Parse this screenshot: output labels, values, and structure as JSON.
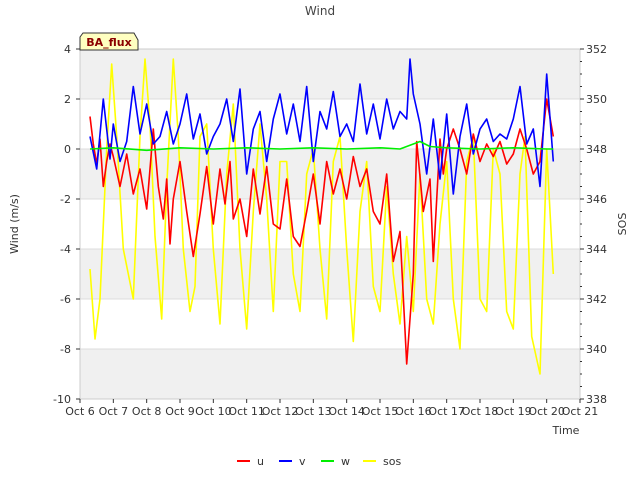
{
  "chart_data": {
    "type": "line",
    "title": "Wind",
    "station_label": "BA_flux",
    "xlabel": "Time",
    "ylabel_left": "Wind (m/s)",
    "ylabel_right": "SOS",
    "xlim": [
      6,
      21
    ],
    "x_ticks": [
      {
        "x": 6,
        "label": "Oct 6"
      },
      {
        "x": 7,
        "label": "Oct 7"
      },
      {
        "x": 8,
        "label": "Oct 8"
      },
      {
        "x": 9,
        "label": "Oct 9"
      },
      {
        "x": 10,
        "label": "Oct 10"
      },
      {
        "x": 11,
        "label": "Oct 11"
      },
      {
        "x": 12,
        "label": "Oct 12"
      },
      {
        "x": 13,
        "label": "Oct 13"
      },
      {
        "x": 14,
        "label": "Oct 14"
      },
      {
        "x": 15,
        "label": "Oct 15"
      },
      {
        "x": 16,
        "label": "Oct 16"
      },
      {
        "x": 17,
        "label": "Oct 17"
      },
      {
        "x": 18,
        "label": "Oct 18"
      },
      {
        "x": 19,
        "label": "Oct 19"
      },
      {
        "x": 20,
        "label": "Oct 20"
      },
      {
        "x": 21,
        "label": "Oct 21"
      }
    ],
    "ylim_left": [
      -10,
      4
    ],
    "y_ticks_left": [
      4,
      2,
      0,
      -2,
      -4,
      -6,
      -8,
      -10
    ],
    "ylim_right": [
      338,
      352
    ],
    "y_ticks_right": [
      352,
      350,
      348,
      346,
      344,
      342,
      340,
      338
    ],
    "grid": "horizontal bands",
    "legend_position": "bottom",
    "series": [
      {
        "name": "u",
        "axis": "left",
        "color": "#ff0000",
        "x": [
          6.3,
          6.4,
          6.5,
          6.6,
          6.7,
          6.8,
          6.9,
          7.0,
          7.2,
          7.4,
          7.6,
          7.8,
          8.0,
          8.2,
          8.35,
          8.5,
          8.6,
          8.7,
          8.8,
          9.0,
          9.2,
          9.4,
          9.6,
          9.8,
          10.0,
          10.2,
          10.35,
          10.5,
          10.6,
          10.8,
          11.0,
          11.2,
          11.4,
          11.6,
          11.8,
          12.0,
          12.2,
          12.4,
          12.6,
          12.8,
          13.0,
          13.2,
          13.4,
          13.6,
          13.8,
          14.0,
          14.2,
          14.4,
          14.6,
          14.8,
          15.0,
          15.2,
          15.4,
          15.6,
          15.8,
          16.0,
          16.1,
          16.3,
          16.5,
          16.6,
          16.8,
          16.9,
          17.0,
          17.2,
          17.4,
          17.6,
          17.8,
          18.0,
          18.2,
          18.4,
          18.6,
          18.8,
          19.0,
          19.2,
          19.4,
          19.6,
          19.8,
          20.0,
          20.2
        ],
        "y": [
          1.3,
          0.2,
          -0.6,
          0.4,
          -1.5,
          -0.5,
          0.2,
          -0.3,
          -1.5,
          -0.2,
          -1.8,
          -0.8,
          -2.4,
          0.8,
          -1.5,
          -2.8,
          -1.2,
          -3.8,
          -2.0,
          -0.5,
          -2.5,
          -4.3,
          -2.6,
          -0.7,
          -3.0,
          -0.8,
          -2.2,
          -0.5,
          -2.8,
          -2.0,
          -3.5,
          -0.8,
          -2.6,
          -0.7,
          -3.0,
          -3.2,
          -1.2,
          -3.5,
          -3.9,
          -2.5,
          -1.0,
          -3.0,
          -0.5,
          -1.8,
          -0.8,
          -2.0,
          -0.3,
          -1.5,
          -0.8,
          -2.5,
          -3.0,
          -1.0,
          -4.5,
          -3.3,
          -8.6,
          -5.0,
          0.3,
          -2.5,
          -1.2,
          -4.5,
          0.4,
          -1.0,
          0.0,
          0.8,
          0.0,
          -1.0,
          0.6,
          -0.5,
          0.2,
          -0.3,
          0.3,
          -0.6,
          -0.2,
          0.8,
          0.0,
          -1.0,
          -0.5,
          2.0,
          0.5
        ]
      },
      {
        "name": "v",
        "axis": "left",
        "color": "#0000ff",
        "x": [
          6.3,
          6.5,
          6.7,
          6.9,
          7.0,
          7.2,
          7.4,
          7.6,
          7.8,
          8.0,
          8.2,
          8.4,
          8.6,
          8.8,
          9.0,
          9.2,
          9.4,
          9.6,
          9.8,
          10.0,
          10.2,
          10.4,
          10.6,
          10.8,
          11.0,
          11.2,
          11.4,
          11.6,
          11.8,
          12.0,
          12.2,
          12.4,
          12.6,
          12.8,
          13.0,
          13.2,
          13.4,
          13.6,
          13.8,
          14.0,
          14.2,
          14.4,
          14.6,
          14.8,
          15.0,
          15.2,
          15.4,
          15.6,
          15.8,
          15.9,
          16.0,
          16.2,
          16.4,
          16.6,
          16.8,
          17.0,
          17.2,
          17.4,
          17.6,
          17.8,
          18.0,
          18.2,
          18.4,
          18.6,
          18.8,
          19.0,
          19.2,
          19.4,
          19.6,
          19.8,
          20.0,
          20.2
        ],
        "y": [
          0.5,
          -0.8,
          2.0,
          -0.4,
          1.0,
          -0.5,
          0.3,
          2.5,
          0.6,
          1.8,
          0.2,
          0.5,
          1.5,
          0.2,
          1.0,
          2.2,
          0.4,
          1.4,
          -0.2,
          0.5,
          1.0,
          2.0,
          0.3,
          2.4,
          -1.0,
          0.8,
          1.5,
          -0.5,
          1.2,
          2.2,
          0.6,
          1.8,
          0.3,
          2.5,
          -0.5,
          1.5,
          0.8,
          2.3,
          0.5,
          1.0,
          0.3,
          2.6,
          0.6,
          1.8,
          0.4,
          2.0,
          0.8,
          1.5,
          1.2,
          3.6,
          2.2,
          1.0,
          -1.0,
          1.2,
          -1.2,
          1.4,
          -1.8,
          0.5,
          1.8,
          -0.2,
          0.8,
          1.2,
          0.3,
          0.6,
          0.4,
          1.2,
          2.5,
          0.2,
          0.8,
          -1.5,
          3.0,
          -0.5
        ]
      },
      {
        "name": "w",
        "axis": "left",
        "color": "#00ee00",
        "x": [
          6.3,
          7.0,
          8.0,
          9.0,
          10.0,
          11.0,
          12.0,
          13.0,
          14.0,
          15.0,
          15.6,
          16.0,
          16.2,
          16.5,
          17.0,
          18.0,
          19.0,
          20.0,
          20.2
        ],
        "y": [
          0.0,
          0.05,
          -0.05,
          0.05,
          0.0,
          0.05,
          0.0,
          0.05,
          0.0,
          0.05,
          0.0,
          0.2,
          0.3,
          0.1,
          0.05,
          0.0,
          0.05,
          0.0,
          0.0
        ]
      },
      {
        "name": "sos",
        "axis": "right",
        "color": "#ffff00",
        "x": [
          6.3,
          6.45,
          6.6,
          6.8,
          6.95,
          7.1,
          7.3,
          7.45,
          7.6,
          7.8,
          7.95,
          8.1,
          8.25,
          8.45,
          8.6,
          8.8,
          8.95,
          9.1,
          9.3,
          9.45,
          9.6,
          9.8,
          10.0,
          10.2,
          10.4,
          10.6,
          10.8,
          11.0,
          11.2,
          11.4,
          11.6,
          11.8,
          12.0,
          12.2,
          12.4,
          12.6,
          12.8,
          13.0,
          13.2,
          13.4,
          13.6,
          13.8,
          14.0,
          14.2,
          14.4,
          14.6,
          14.8,
          15.0,
          15.2,
          15.4,
          15.6,
          15.8,
          16.0,
          16.2,
          16.4,
          16.6,
          16.8,
          17.0,
          17.2,
          17.4,
          17.6,
          17.8,
          18.0,
          18.2,
          18.4,
          18.6,
          18.8,
          19.0,
          19.2,
          19.35,
          19.55,
          19.8,
          20.0,
          20.2
        ],
        "y": [
          343.2,
          340.4,
          342.0,
          348.0,
          351.4,
          348.5,
          344.0,
          343.0,
          342.0,
          348.5,
          351.6,
          349.0,
          344.5,
          341.2,
          346.5,
          351.6,
          348.5,
          344.0,
          341.5,
          342.5,
          348.5,
          349.0,
          344.0,
          341.0,
          347.0,
          349.8,
          344.0,
          340.8,
          345.5,
          349.0,
          346.0,
          341.5,
          347.5,
          347.5,
          343.0,
          341.5,
          347.0,
          348.0,
          344.0,
          341.2,
          347.5,
          348.5,
          344.0,
          340.3,
          345.5,
          347.5,
          342.5,
          341.5,
          346.5,
          343.0,
          341.0,
          344.5,
          341.5,
          347.0,
          342.0,
          341.0,
          345.0,
          347.5,
          342.0,
          340.0,
          347.5,
          348.5,
          342.0,
          341.5,
          348.0,
          347.0,
          341.5,
          340.8,
          347.0,
          348.5,
          340.5,
          339.0,
          348.0,
          343.0
        ]
      }
    ]
  }
}
